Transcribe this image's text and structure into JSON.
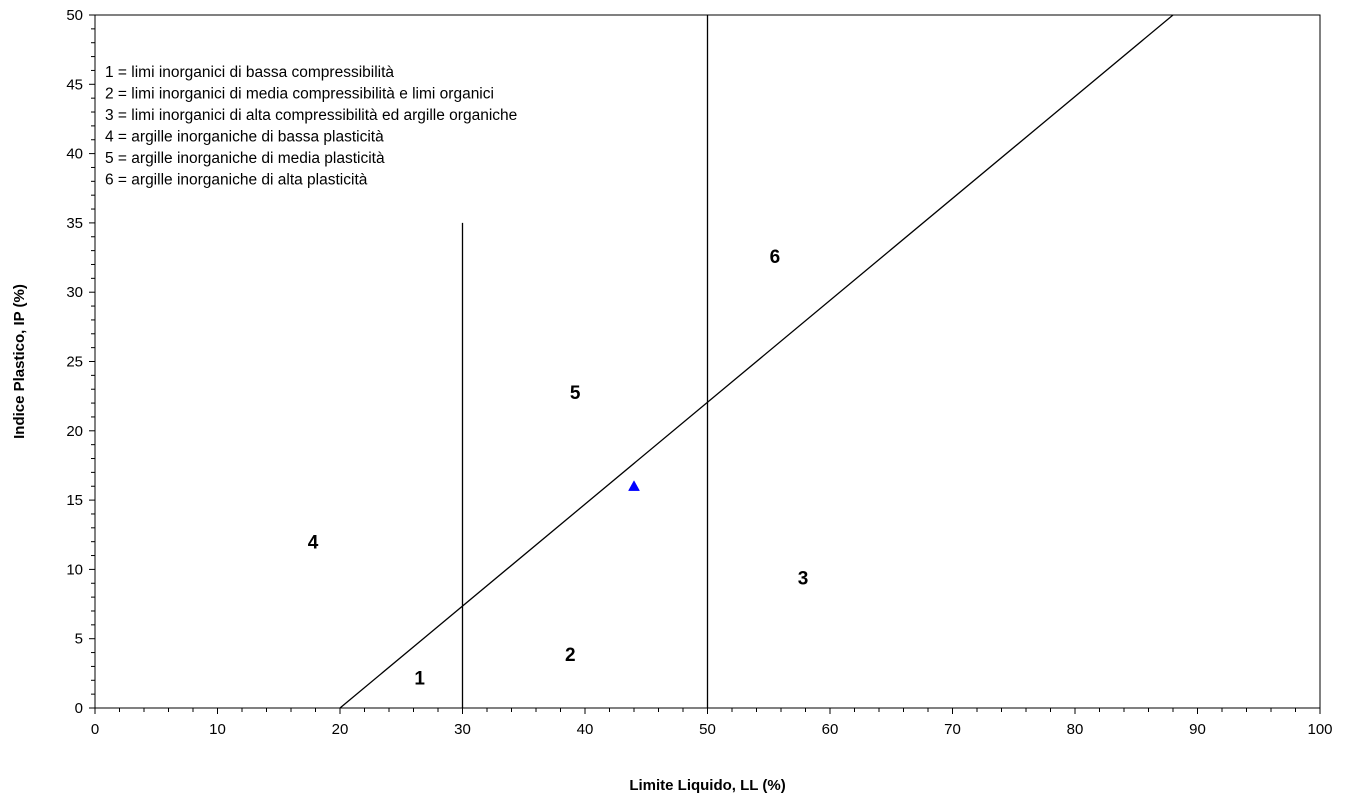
{
  "chart_data": {
    "type": "scatter",
    "title": "",
    "xlabel": "Limite Liquido, LL (%)",
    "ylabel": "Indice Plastico, IP (%)",
    "xlim": [
      0,
      100
    ],
    "ylim": [
      0,
      50
    ],
    "x_ticks": [
      0,
      10,
      20,
      30,
      40,
      50,
      60,
      70,
      80,
      90,
      100
    ],
    "y_ticks": [
      0,
      5,
      10,
      15,
      20,
      25,
      30,
      35,
      40,
      45,
      50
    ],
    "x_minor_step": 2,
    "y_minor_step": 1,
    "grid": false,
    "a_line": {
      "x": [
        20,
        88
      ],
      "y": [
        0,
        50
      ]
    },
    "vertical_lines": [
      {
        "x": 30,
        "segments": [
          [
            0,
            35
          ],
          [
            50,
            50
          ]
        ]
      },
      {
        "x": 50,
        "segments": [
          [
            0,
            50
          ]
        ]
      }
    ],
    "points": [
      {
        "x": 44,
        "y": 16,
        "marker": "triangle",
        "color": "#0000ff"
      }
    ],
    "zone_labels": [
      {
        "text": "1",
        "x": 26.5,
        "y": 2.2
      },
      {
        "text": "2",
        "x": 38.8,
        "y": 3.9
      },
      {
        "text": "3",
        "x": 57.8,
        "y": 9.4
      },
      {
        "text": "4",
        "x": 17.8,
        "y": 12.0
      },
      {
        "text": "5",
        "x": 39.2,
        "y": 22.8
      },
      {
        "text": "6",
        "x": 55.5,
        "y": 32.6
      }
    ],
    "legend_position": "top-left",
    "legend": [
      "1 = limi inorganici di bassa compressibilità",
      "2 = limi inorganici di media compressibilità e limi organici",
      "3 = limi inorganici di alta compressibilità ed argille organiche",
      "4 = argille inorganiche di bassa plasticità",
      "5 = argille inorganiche di media plasticità",
      "6 = argille inorganiche di alta plasticità"
    ]
  }
}
